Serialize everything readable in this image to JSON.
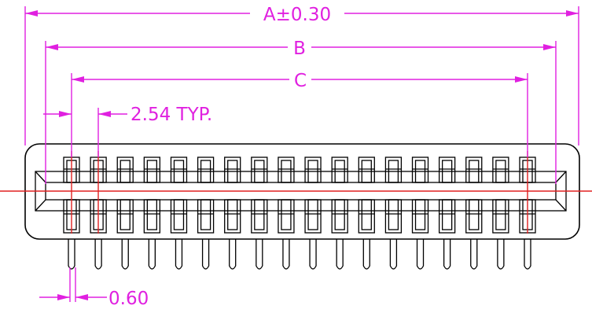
{
  "drawing": {
    "dimensions": {
      "a": "A±0.30",
      "b": "B",
      "c": "C",
      "pitch": "2.54 TYP.",
      "pin_width": "0.60"
    },
    "pin_count": 18,
    "colors": {
      "dimension": "#e020e0",
      "centerline": "#e02020",
      "outline": "#000000"
    }
  }
}
